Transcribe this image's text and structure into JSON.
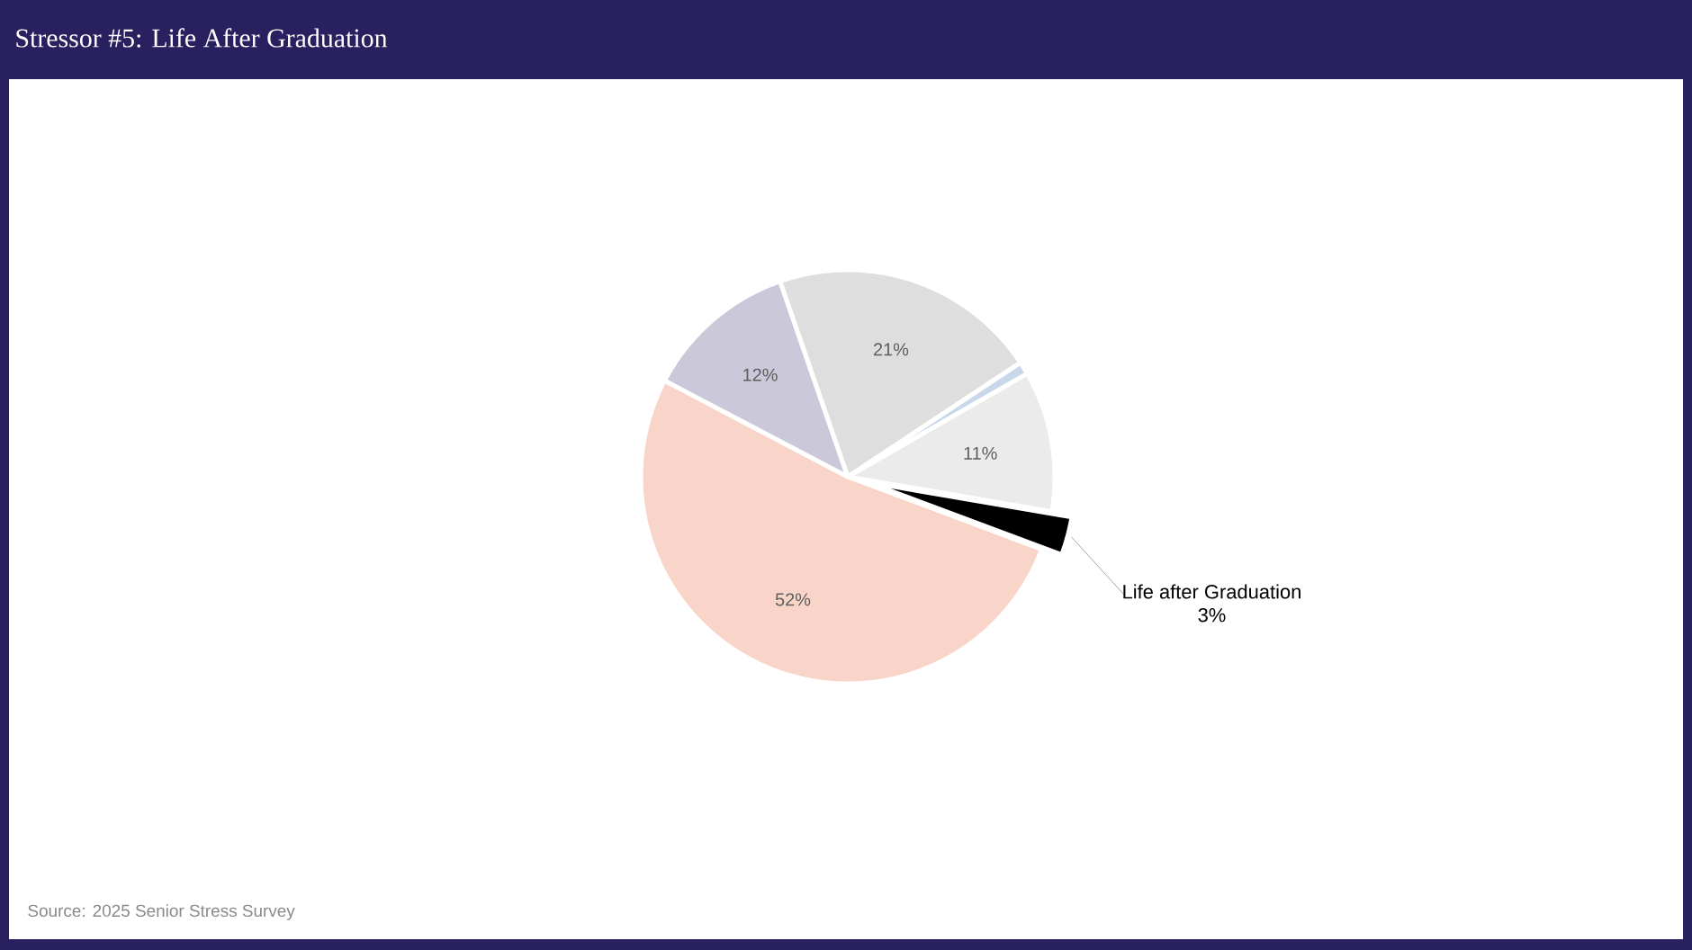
{
  "chart_data": {
    "type": "pie",
    "title": "Stressor #5: Life After Graduation",
    "categories": [
      null,
      null,
      null,
      null,
      null,
      "Life after Graduation"
    ],
    "values": [
      52,
      12,
      21,
      1,
      11,
      3
    ],
    "colors": [
      "#f8d5c8",
      "#cbc9d9",
      "#dedede",
      "#c8d8ea",
      "#ebebeb",
      "#000000"
    ],
    "value_labels": [
      "52%",
      "12%",
      "21%",
      null,
      "11%",
      "3%"
    ],
    "annotations": [
      "Source: 2025 Senior Stress Survey"
    ]
  }
}
